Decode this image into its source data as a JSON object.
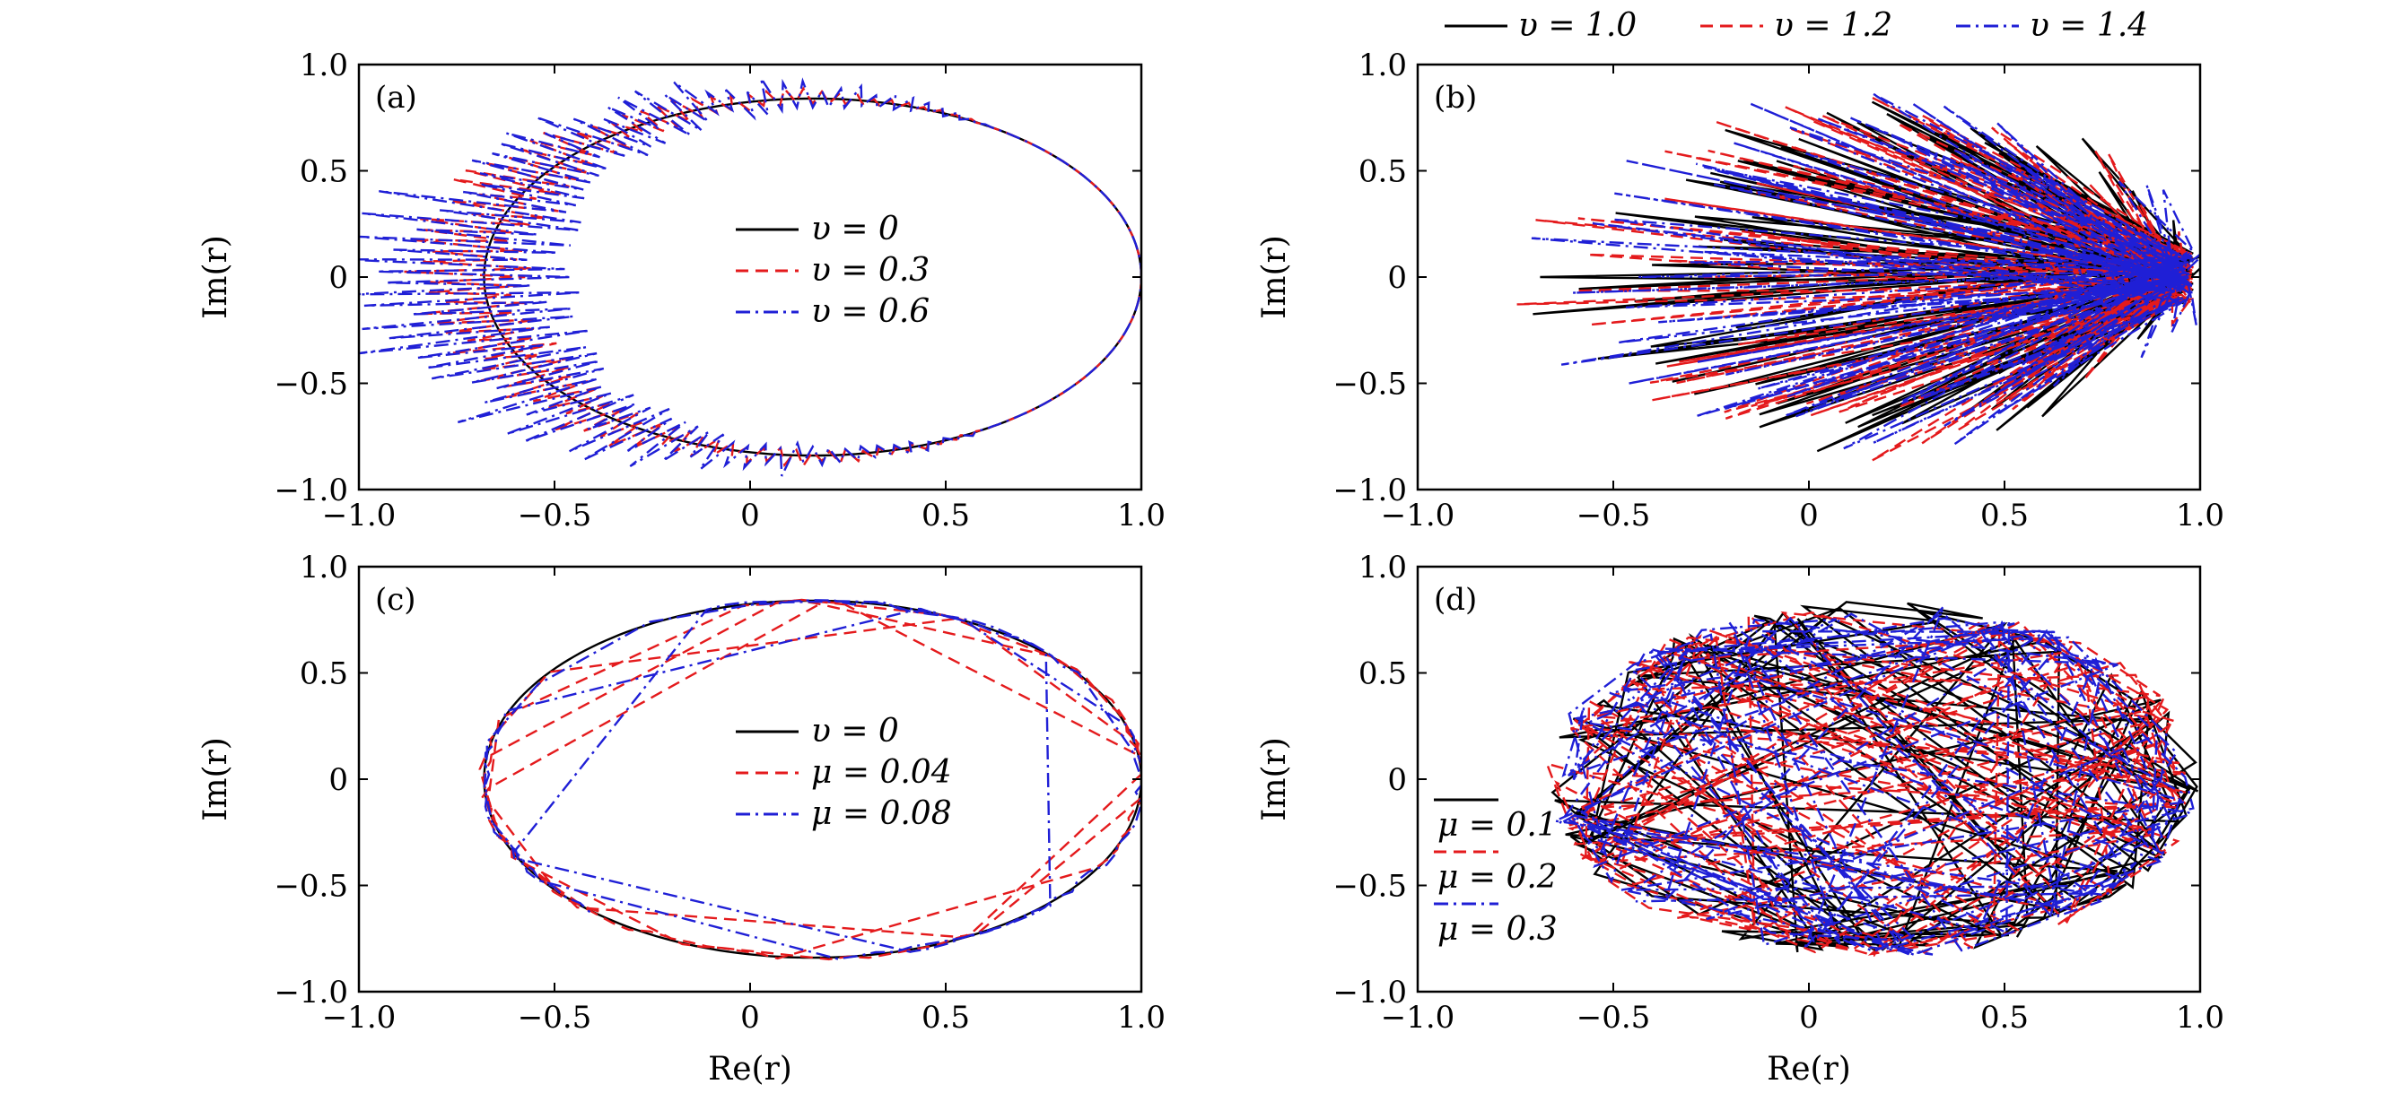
{
  "colors": {
    "black": "#000000",
    "red": "#e41a1c",
    "blue": "#1f1fd6"
  },
  "chart_data": [
    {
      "panel": "(a)",
      "type": "line",
      "xlim": [
        -1.0,
        1.0
      ],
      "ylim": [
        -1.0,
        1.0
      ],
      "xticks": [
        "−1.0",
        "−0.5",
        "0",
        "0.5",
        "1.0"
      ],
      "yticks": [
        "1.0",
        "0.5",
        "0",
        "−0.5",
        "−1.0"
      ],
      "xlabel": "",
      "ylabel": "Im(r)",
      "legend_position": "center",
      "series": [
        {
          "name": "υ = 0",
          "style": "solid",
          "color": "black",
          "kind": "ellipse",
          "center": [
            0.16,
            0.0
          ],
          "radii": [
            0.84,
            0.84
          ],
          "jitter": 0.0
        },
        {
          "name": "υ = 0.3",
          "style": "dashed",
          "color": "red",
          "kind": "ellipse",
          "center": [
            0.16,
            0.0
          ],
          "radii": [
            0.84,
            0.84
          ],
          "jitter": 0.1
        },
        {
          "name": "υ = 0.6",
          "style": "dashdot",
          "color": "blue",
          "kind": "ellipse",
          "center": [
            0.16,
            0.0
          ],
          "radii": [
            0.84,
            0.84
          ],
          "jitter": 0.18
        }
      ]
    },
    {
      "panel": "(b)",
      "type": "line",
      "xlim": [
        -1.0,
        1.0
      ],
      "ylim": [
        -1.0,
        1.0
      ],
      "xticks": [
        "−1.0",
        "−0.5",
        "0",
        "0.5",
        "1.0"
      ],
      "yticks": [
        "1.0",
        "0.5",
        "0",
        "−0.5",
        "−1.0"
      ],
      "xlabel": "",
      "ylabel": "Im(r)",
      "legend_position": "top-outside",
      "series": [
        {
          "name": "υ = 1.0",
          "style": "solid",
          "color": "black",
          "kind": "rays",
          "center": [
            0.16,
            0.0
          ],
          "radii": [
            0.84,
            0.84
          ],
          "jitter": 0.0
        },
        {
          "name": "υ = 1.2",
          "style": "dashed",
          "color": "red",
          "kind": "rays",
          "center": [
            0.16,
            0.0
          ],
          "radii": [
            0.84,
            0.84
          ],
          "jitter": 0.0
        },
        {
          "name": "υ = 1.4",
          "style": "dashdot",
          "color": "blue",
          "kind": "rays",
          "center": [
            0.16,
            0.0
          ],
          "radii": [
            0.84,
            0.84
          ],
          "jitter": 0.0
        }
      ]
    },
    {
      "panel": "(c)",
      "type": "line",
      "xlim": [
        -1.0,
        1.0
      ],
      "ylim": [
        -1.0,
        1.0
      ],
      "xticks": [
        "−1.0",
        "−0.5",
        "0",
        "0.5",
        "1.0"
      ],
      "yticks": [
        "1.0",
        "0.5",
        "0",
        "−0.5",
        "−1.0"
      ],
      "xlabel": "Re(r)",
      "ylabel": "Im(r)",
      "legend_position": "center",
      "series": [
        {
          "name": "υ = 0",
          "style": "solid",
          "color": "black",
          "kind": "ellipse",
          "center": [
            0.16,
            0.0
          ],
          "radii": [
            0.84,
            0.84
          ],
          "jitter": 0.0
        },
        {
          "name": "μ = 0.04",
          "style": "dashed",
          "color": "red",
          "kind": "chords",
          "center": [
            0.16,
            0.0
          ],
          "radii": [
            0.84,
            0.84
          ],
          "jitter": 0.0
        },
        {
          "name": "μ = 0.08",
          "style": "dashdot",
          "color": "blue",
          "kind": "chords",
          "center": [
            0.16,
            0.0
          ],
          "radii": [
            0.84,
            0.84
          ],
          "jitter": 0.0
        }
      ]
    },
    {
      "panel": "(d)",
      "type": "line",
      "xlim": [
        -1.0,
        1.0
      ],
      "ylim": [
        -1.0,
        1.0
      ],
      "xticks": [
        "−1.0",
        "−0.5",
        "0",
        "0.5",
        "1.0"
      ],
      "yticks": [
        "1.0",
        "0.5",
        "0",
        "−0.5",
        "−1.0"
      ],
      "xlabel": "Re(r)",
      "ylabel": "Im(r)",
      "legend_position": "bottom-left",
      "series": [
        {
          "name": "μ = 0.1",
          "style": "solid",
          "color": "black",
          "kind": "web",
          "center": [
            0.16,
            0.0
          ],
          "radii": [
            0.84,
            0.84
          ],
          "jitter": 0.0
        },
        {
          "name": "μ = 0.2",
          "style": "dashed",
          "color": "red",
          "kind": "web",
          "center": [
            0.16,
            0.0
          ],
          "radii": [
            0.84,
            0.84
          ],
          "jitter": 0.0
        },
        {
          "name": "μ = 0.3",
          "style": "dashdot",
          "color": "blue",
          "kind": "web",
          "center": [
            0.16,
            0.0
          ],
          "radii": [
            0.84,
            0.84
          ],
          "jitter": 0.0
        }
      ]
    }
  ]
}
